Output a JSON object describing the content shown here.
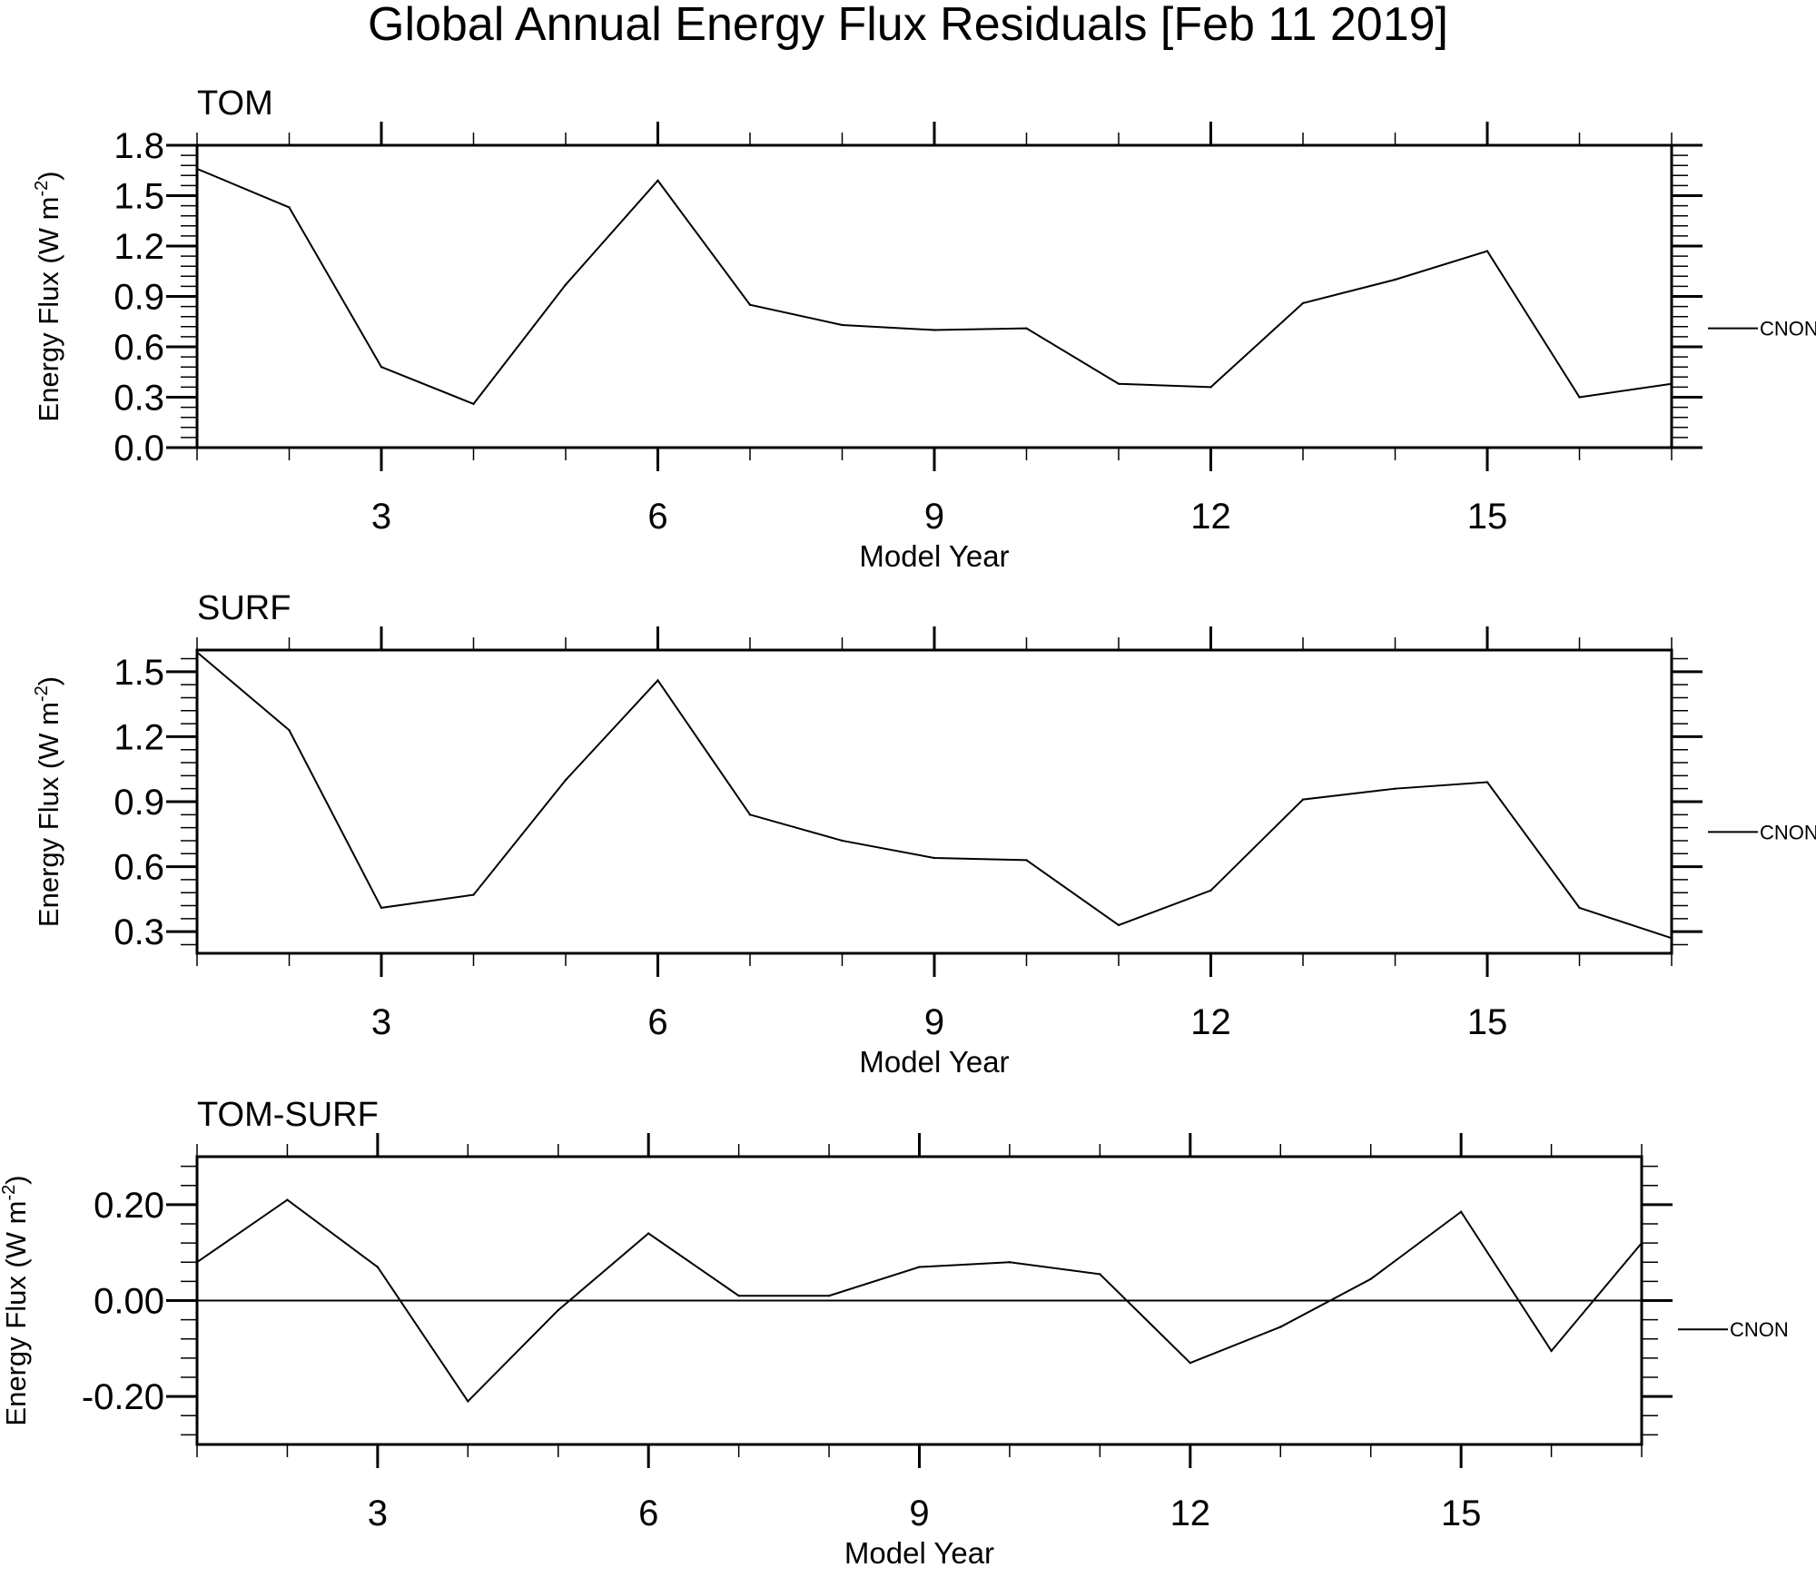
{
  "title": "Global Annual Energy Flux Residuals [Feb 11 2019]",
  "chart_data": [
    {
      "type": "line",
      "panel": "TOM",
      "title": "TOM",
      "xlabel": "Model Year",
      "ylabel": "Energy Flux (W m",
      "ylabel_sup": "-2",
      "ylabel_close": ")",
      "xlim": [
        1,
        17
      ],
      "ylim": [
        0.0,
        1.8
      ],
      "xticks": [
        3,
        6,
        9,
        12,
        15
      ],
      "xtick_labels": [
        "3",
        "6",
        "9",
        "12",
        "15"
      ],
      "yticks": [
        0.0,
        0.3,
        0.6,
        0.9,
        1.2,
        1.5,
        1.8
      ],
      "ytick_labels": [
        "0.0",
        "0.3",
        "0.6",
        "0.9",
        "1.2",
        "1.5",
        "1.8"
      ],
      "series": [
        {
          "name": "CNON",
          "x": [
            1,
            2,
            3,
            4,
            5,
            6,
            7,
            8,
            9,
            10,
            11,
            12,
            13,
            14,
            15,
            16,
            17
          ],
          "values": [
            1.66,
            1.43,
            0.48,
            0.26,
            0.97,
            1.59,
            0.85,
            0.73,
            0.7,
            0.71,
            0.38,
            0.36,
            0.86,
            1.0,
            1.17,
            0.3,
            0.38
          ]
        }
      ],
      "legend_value": 0.71
    },
    {
      "type": "line",
      "panel": "SURF",
      "title": "SURF",
      "xlabel": "Model Year",
      "ylabel": "Energy Flux (W m",
      "ylabel_sup": "-2",
      "ylabel_close": ")",
      "xlim": [
        1,
        17
      ],
      "ylim": [
        0.2,
        1.6
      ],
      "xticks": [
        3,
        6,
        9,
        12,
        15
      ],
      "xtick_labels": [
        "3",
        "6",
        "9",
        "12",
        "15"
      ],
      "yticks": [
        0.3,
        0.6,
        0.9,
        1.2,
        1.5
      ],
      "ytick_labels": [
        "0.3",
        "0.6",
        "0.9",
        "1.2",
        "1.5"
      ],
      "series": [
        {
          "name": "CNON",
          "x": [
            1,
            2,
            3,
            4,
            5,
            6,
            7,
            8,
            9,
            10,
            11,
            12,
            13,
            14,
            15,
            16,
            17
          ],
          "values": [
            1.59,
            1.23,
            0.41,
            0.47,
            1.0,
            1.46,
            0.84,
            0.72,
            0.64,
            0.63,
            0.33,
            0.49,
            0.91,
            0.96,
            0.99,
            0.41,
            0.27
          ]
        }
      ],
      "legend_value": 0.76
    },
    {
      "type": "line",
      "panel": "TOM-SURF",
      "title": "TOM-SURF",
      "xlabel": "Model Year",
      "ylabel": "Energy Flux (W m",
      "ylabel_sup": "-2",
      "ylabel_close": ")",
      "xlim": [
        1,
        17
      ],
      "ylim": [
        -0.3,
        0.3
      ],
      "xticks": [
        3,
        6,
        9,
        12,
        15
      ],
      "xtick_labels": [
        "3",
        "6",
        "9",
        "12",
        "15"
      ],
      "yticks": [
        -0.2,
        0.0,
        0.2
      ],
      "ytick_labels": [
        "-0.20",
        "0.00",
        "0.20"
      ],
      "zero_line": true,
      "series": [
        {
          "name": "CNON",
          "x": [
            1,
            2,
            3,
            4,
            5,
            6,
            7,
            8,
            9,
            10,
            11,
            12,
            13,
            14,
            15,
            16,
            17
          ],
          "values": [
            0.08,
            0.21,
            0.07,
            -0.21,
            -0.02,
            0.14,
            0.01,
            0.01,
            0.07,
            0.08,
            0.055,
            -0.13,
            -0.055,
            0.045,
            0.185,
            -0.105,
            0.12
          ]
        }
      ],
      "legend_value": -0.06
    }
  ]
}
